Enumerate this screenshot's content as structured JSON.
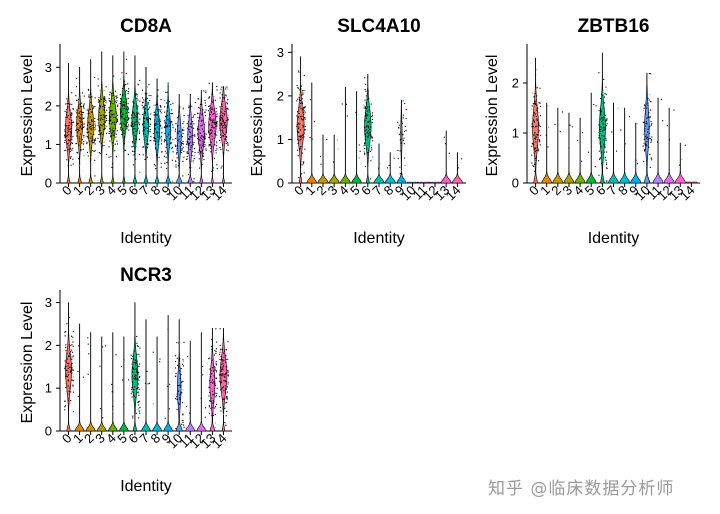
{
  "watermark": "知乎 @临床数据分析师",
  "chart_data": [
    {
      "type": "violin",
      "title": "CD8A",
      "xlabel": "Identity",
      "ylabel": "Expression Level",
      "categories": [
        "0",
        "1",
        "2",
        "3",
        "4",
        "5",
        "6",
        "7",
        "8",
        "9",
        "10",
        "11",
        "12",
        "13",
        "14"
      ],
      "yticks": [
        0,
        1,
        2,
        3
      ],
      "ylim": [
        0,
        3.5
      ],
      "max": [
        3.1,
        3.0,
        3.2,
        3.4,
        3.3,
        3.4,
        3.3,
        3.0,
        2.7,
        2.6,
        2.3,
        2.3,
        2.4,
        2.6,
        2.5
      ],
      "body_center": [
        1.4,
        1.5,
        1.5,
        1.7,
        1.7,
        1.8,
        1.6,
        1.5,
        1.4,
        1.4,
        1.2,
        1.2,
        1.3,
        1.5,
        1.6
      ],
      "zero_fraction": [
        0.3,
        0.35,
        0.35,
        0.3,
        0.25,
        0.25,
        0.35,
        0.4,
        0.4,
        0.45,
        0.55,
        0.45,
        0.3,
        0.2,
        0.2
      ]
    },
    {
      "type": "violin",
      "title": "SLC4A10",
      "xlabel": "Identity",
      "ylabel": "Expression Level",
      "categories": [
        "0",
        "1",
        "2",
        "3",
        "4",
        "5",
        "6",
        "7",
        "8",
        "9",
        "10",
        "11",
        "12",
        "13",
        "14"
      ],
      "yticks": [
        0,
        1,
        2,
        3
      ],
      "ylim": [
        0,
        3.1
      ],
      "max": [
        2.9,
        2.3,
        1.1,
        1.1,
        2.2,
        2.1,
        2.5,
        0.9,
        0.7,
        1.9,
        0,
        0,
        0,
        1.2,
        0.7
      ],
      "body_center": [
        1.3,
        0,
        0,
        0,
        0,
        0,
        1.3,
        0,
        0,
        1.1,
        0,
        0,
        0,
        0,
        0
      ],
      "zero_fraction": [
        0.25,
        0.95,
        0.98,
        0.98,
        0.98,
        0.95,
        0.3,
        0.98,
        0.98,
        0.85,
        1,
        1,
        1,
        0.98,
        0.98
      ]
    },
    {
      "type": "violin",
      "title": "ZBTB16",
      "xlabel": "Identity",
      "ylabel": "Expression Level",
      "categories": [
        "0",
        "1",
        "2",
        "3",
        "4",
        "5",
        "6",
        "7",
        "8",
        "9",
        "10",
        "11",
        "12",
        "13",
        "14"
      ],
      "yticks": [
        0,
        1,
        2
      ],
      "ylim": [
        0,
        2.7
      ],
      "max": [
        2.5,
        1.6,
        1.5,
        1.4,
        1.3,
        1.8,
        2.6,
        1.6,
        1.5,
        1.2,
        2.2,
        1.7,
        1.5,
        0.8,
        0
      ],
      "body_center": [
        1.1,
        0,
        0,
        0,
        0,
        0,
        1.1,
        0,
        0,
        0,
        1.1,
        0,
        0,
        0,
        0
      ],
      "zero_fraction": [
        0.35,
        0.95,
        0.97,
        0.97,
        0.97,
        0.95,
        0.35,
        0.97,
        0.97,
        0.97,
        0.5,
        0.97,
        0.97,
        0.98,
        1
      ]
    },
    {
      "type": "violin",
      "title": "NCR3",
      "xlabel": "Identity",
      "ylabel": "Expression Level",
      "categories": [
        "0",
        "1",
        "2",
        "3",
        "4",
        "5",
        "6",
        "7",
        "8",
        "9",
        "10",
        "11",
        "12",
        "13",
        "14"
      ],
      "yticks": [
        0,
        1,
        2,
        3
      ],
      "ylim": [
        0,
        3.2
      ],
      "max": [
        3.0,
        2.5,
        2.3,
        2.2,
        2.3,
        2.2,
        3.0,
        2.6,
        2.2,
        2.7,
        2.6,
        2.1,
        2.3,
        2.4,
        2.4
      ],
      "body_center": [
        1.4,
        0,
        0,
        0,
        0,
        0,
        1.3,
        0,
        0,
        0,
        1.0,
        0,
        0,
        1.1,
        1.3
      ],
      "zero_fraction": [
        0.35,
        0.9,
        0.9,
        0.88,
        0.88,
        0.88,
        0.35,
        0.9,
        0.9,
        0.88,
        0.6,
        0.9,
        0.88,
        0.45,
        0.25
      ]
    }
  ],
  "palette": [
    "#F8766D",
    "#E58700",
    "#C99800",
    "#A3A500",
    "#6BB100",
    "#00BA38",
    "#00BF7D",
    "#00C0AF",
    "#00BCD8",
    "#00B0F6",
    "#619CFF",
    "#B983FF",
    "#E76BF3",
    "#FD61D1",
    "#FF67A4"
  ]
}
